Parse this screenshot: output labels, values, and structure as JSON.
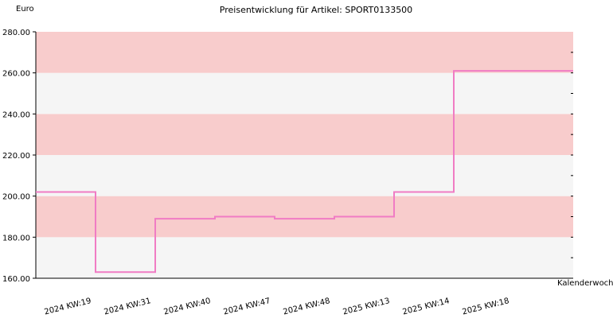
{
  "chart_data": {
    "type": "line",
    "title": "Preisentwicklung für Artikel: SPORT0133500",
    "ylabel": "Euro",
    "xlabel": "Kalenderwoche",
    "ylim": [
      160,
      280
    ],
    "y_ticks": [
      "160.00",
      "180.00",
      "200.00",
      "220.00",
      "240.00",
      "260.00",
      "280.00"
    ],
    "categories": [
      "2024 KW:19",
      "2024 KW:31",
      "2024 KW:40",
      "2024 KW:47",
      "2024 KW:48",
      "2025 KW:13",
      "2025 KW:14",
      "2025 KW:18"
    ],
    "series": [
      {
        "values": [
          202,
          163,
          189,
          190,
          189,
          190,
          202,
          261
        ]
      }
    ],
    "step": true,
    "band_colors": {
      "dark": "#f8cccc",
      "light": "#f5f5f5"
    },
    "line_color": "#f07cc4",
    "grid": false,
    "legend": "none"
  }
}
